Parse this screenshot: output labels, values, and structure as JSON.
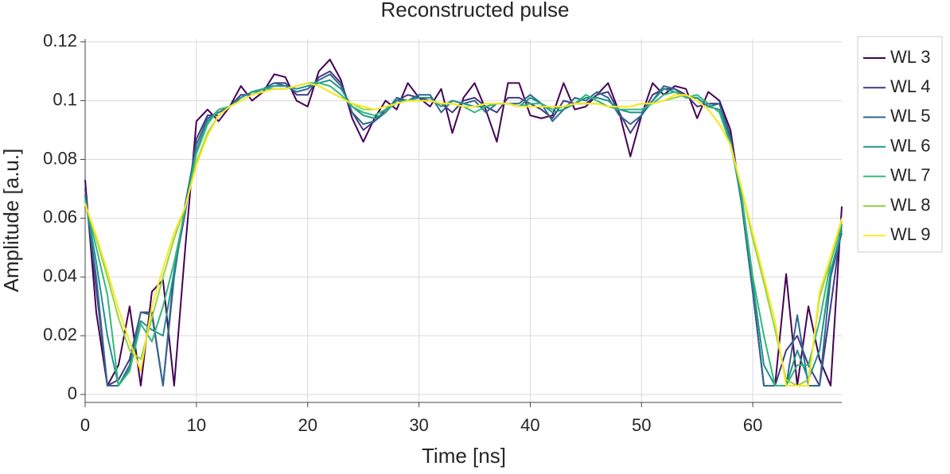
{
  "chart_data": {
    "type": "line",
    "title": "Reconstructed pulse",
    "x_label": "Time [ns]",
    "y_label": "Amplitude [a.u.]",
    "x": [
      0,
      1,
      2,
      3,
      4,
      5,
      6,
      7,
      8,
      9,
      10,
      11,
      12,
      13,
      14,
      15,
      16,
      17,
      18,
      19,
      20,
      21,
      22,
      23,
      24,
      25,
      26,
      27,
      28,
      29,
      30,
      31,
      32,
      33,
      34,
      35,
      36,
      37,
      38,
      39,
      40,
      41,
      42,
      43,
      44,
      45,
      46,
      47,
      48,
      49,
      50,
      51,
      52,
      53,
      54,
      55,
      56,
      57,
      58,
      59,
      60,
      61,
      62,
      63,
      64,
      65,
      66,
      67,
      68
    ],
    "xlim": [
      0,
      68
    ],
    "xticks": [
      0,
      10,
      20,
      30,
      40,
      50,
      60
    ],
    "ylim": [
      -0.0027,
      0.121
    ],
    "yticks": [
      0,
      0.02,
      0.04,
      0.06,
      0.08,
      0.1,
      0.12
    ],
    "grid": true,
    "legend": "outside-right",
    "series": [
      {
        "name": "WL 3",
        "color": "#440154",
        "values": [
          0.073,
          0.028,
          0.003,
          0.01,
          0.03,
          0.003,
          0.035,
          0.039,
          0.003,
          0.05,
          0.093,
          0.097,
          0.093,
          0.098,
          0.105,
          0.1,
          0.103,
          0.109,
          0.108,
          0.1,
          0.098,
          0.11,
          0.114,
          0.107,
          0.094,
          0.086,
          0.094,
          0.1,
          0.097,
          0.106,
          0.101,
          0.098,
          0.104,
          0.089,
          0.101,
          0.106,
          0.097,
          0.086,
          0.106,
          0.106,
          0.095,
          0.094,
          0.095,
          0.106,
          0.097,
          0.098,
          0.102,
          0.106,
          0.096,
          0.081,
          0.095,
          0.106,
          0.102,
          0.105,
          0.104,
          0.094,
          0.103,
          0.1,
          0.09,
          0.065,
          0.035,
          0.003,
          0.003,
          0.041,
          0.003,
          0.03,
          0.012,
          0.003,
          0.064
        ]
      },
      {
        "name": "WL 4",
        "color": "#443983",
        "values": [
          0.07,
          0.036,
          0.003,
          0.005,
          0.012,
          0.028,
          0.028,
          0.003,
          0.042,
          0.062,
          0.087,
          0.095,
          0.095,
          0.098,
          0.102,
          0.102,
          0.104,
          0.106,
          0.106,
          0.102,
          0.102,
          0.108,
          0.11,
          0.106,
          0.096,
          0.09,
          0.093,
          0.097,
          0.1,
          0.102,
          0.101,
          0.1,
          0.099,
          0.096,
          0.1,
          0.101,
          0.098,
          0.096,
          0.101,
          0.101,
          0.099,
          0.097,
          0.094,
          0.1,
          0.099,
          0.099,
          0.102,
          0.103,
          0.096,
          0.089,
          0.095,
          0.102,
          0.104,
          0.104,
          0.102,
          0.098,
          0.099,
          0.099,
          0.088,
          0.065,
          0.035,
          0.003,
          0.003,
          0.015,
          0.02,
          0.01,
          0.003,
          0.03,
          0.058
        ]
      },
      {
        "name": "WL 5",
        "color": "#31688e",
        "values": [
          0.068,
          0.04,
          0.003,
          0.003,
          0.01,
          0.028,
          0.027,
          0.003,
          0.04,
          0.065,
          0.085,
          0.094,
          0.096,
          0.098,
          0.101,
          0.103,
          0.104,
          0.106,
          0.105,
          0.103,
          0.104,
          0.107,
          0.109,
          0.105,
          0.096,
          0.092,
          0.093,
          0.096,
          0.101,
          0.1,
          0.102,
          0.102,
          0.096,
          0.1,
          0.099,
          0.1,
          0.096,
          0.099,
          0.099,
          0.099,
          0.102,
          0.099,
          0.093,
          0.097,
          0.101,
          0.1,
          0.103,
          0.101,
          0.095,
          0.092,
          0.095,
          0.1,
          0.105,
          0.104,
          0.101,
          0.101,
          0.098,
          0.099,
          0.087,
          0.065,
          0.035,
          0.003,
          0.003,
          0.003,
          0.027,
          0.003,
          0.003,
          0.04,
          0.055
        ]
      },
      {
        "name": "WL 6",
        "color": "#21918c",
        "values": [
          0.067,
          0.045,
          0.02,
          0.003,
          0.009,
          0.025,
          0.022,
          0.02,
          0.042,
          0.064,
          0.083,
          0.093,
          0.097,
          0.098,
          0.101,
          0.103,
          0.104,
          0.105,
          0.105,
          0.104,
          0.105,
          0.106,
          0.107,
          0.104,
          0.098,
          0.095,
          0.094,
          0.096,
          0.1,
          0.1,
          0.101,
          0.101,
          0.098,
          0.1,
          0.099,
          0.098,
          0.098,
          0.099,
          0.099,
          0.098,
          0.101,
          0.099,
          0.096,
          0.097,
          0.099,
          0.101,
          0.101,
          0.1,
          0.097,
          0.096,
          0.096,
          0.1,
          0.104,
          0.103,
          0.101,
          0.101,
          0.098,
          0.097,
          0.086,
          0.066,
          0.038,
          0.01,
          0.003,
          0.003,
          0.015,
          0.005,
          0.015,
          0.042,
          0.056
        ]
      },
      {
        "name": "WL 7",
        "color": "#35b779",
        "values": [
          0.066,
          0.05,
          0.034,
          0.003,
          0.008,
          0.024,
          0.018,
          0.03,
          0.045,
          0.063,
          0.082,
          0.092,
          0.097,
          0.098,
          0.1,
          0.102,
          0.104,
          0.104,
          0.104,
          0.105,
          0.106,
          0.106,
          0.105,
          0.102,
          0.098,
          0.096,
          0.095,
          0.097,
          0.099,
          0.1,
          0.1,
          0.1,
          0.099,
          0.099,
          0.098,
          0.096,
          0.098,
          0.099,
          0.099,
          0.098,
          0.099,
          0.099,
          0.097,
          0.098,
          0.099,
          0.102,
          0.1,
          0.098,
          0.097,
          0.097,
          0.097,
          0.099,
          0.102,
          0.103,
          0.101,
          0.102,
          0.099,
          0.096,
          0.085,
          0.068,
          0.04,
          0.02,
          0.003,
          0.003,
          0.01,
          0.01,
          0.025,
          0.045,
          0.058
        ]
      },
      {
        "name": "WL 8",
        "color": "#90d743",
        "values": [
          0.065,
          0.053,
          0.04,
          0.026,
          0.015,
          0.012,
          0.026,
          0.04,
          0.053,
          0.064,
          0.079,
          0.089,
          0.095,
          0.098,
          0.1,
          0.102,
          0.103,
          0.104,
          0.104,
          0.105,
          0.106,
          0.105,
          0.103,
          0.101,
          0.099,
          0.097,
          0.097,
          0.098,
          0.099,
          0.1,
          0.1,
          0.1,
          0.099,
          0.099,
          0.098,
          0.098,
          0.099,
          0.099,
          0.099,
          0.098,
          0.098,
          0.098,
          0.098,
          0.098,
          0.099,
          0.099,
          0.099,
          0.098,
          0.098,
          0.098,
          0.099,
          0.099,
          0.1,
          0.101,
          0.102,
          0.1,
          0.097,
          0.092,
          0.085,
          0.07,
          0.053,
          0.038,
          0.022,
          0.005,
          0.003,
          0.005,
          0.033,
          0.046,
          0.059
        ]
      },
      {
        "name": "WL 9",
        "color": "#fde725",
        "values": [
          0.065,
          0.054,
          0.042,
          0.029,
          0.018,
          0.008,
          0.03,
          0.043,
          0.055,
          0.064,
          0.078,
          0.088,
          0.095,
          0.098,
          0.1,
          0.102,
          0.103,
          0.104,
          0.104,
          0.105,
          0.106,
          0.105,
          0.103,
          0.101,
          0.099,
          0.098,
          0.097,
          0.098,
          0.099,
          0.1,
          0.1,
          0.1,
          0.099,
          0.099,
          0.098,
          0.098,
          0.099,
          0.099,
          0.099,
          0.098,
          0.098,
          0.098,
          0.098,
          0.098,
          0.099,
          0.099,
          0.099,
          0.098,
          0.098,
          0.098,
          0.099,
          0.099,
          0.1,
          0.102,
          0.102,
          0.1,
          0.097,
          0.092,
          0.085,
          0.07,
          0.055,
          0.04,
          0.025,
          0.003,
          0.003,
          0.003,
          0.035,
          0.047,
          0.06
        ]
      }
    ]
  }
}
